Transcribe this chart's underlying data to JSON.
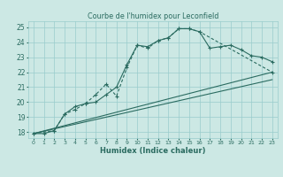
{
  "title": "Courbe de l'humidex pour Leconfield",
  "xlabel": "Humidex (Indice chaleur)",
  "x_ticks": [
    0,
    1,
    2,
    3,
    4,
    5,
    6,
    7,
    8,
    9,
    10,
    11,
    12,
    13,
    14,
    15,
    16,
    17,
    18,
    19,
    20,
    21,
    22,
    23
  ],
  "ylim": [
    17.6,
    25.4
  ],
  "xlim": [
    -0.5,
    23.5
  ],
  "yticks": [
    18,
    19,
    20,
    21,
    22,
    23,
    24,
    25
  ],
  "bg_color": "#cce8e4",
  "line_color": "#2a6b60",
  "grid_color": "#99cccc",
  "line1_x": [
    0,
    1,
    2,
    3,
    4,
    5,
    6,
    7,
    8,
    9,
    10,
    11,
    12,
    13,
    14,
    15,
    16,
    17,
    18,
    19,
    20,
    21,
    22,
    23
  ],
  "line1_y": [
    17.9,
    17.9,
    18.1,
    19.2,
    19.7,
    19.9,
    20.0,
    20.5,
    21.0,
    22.5,
    23.8,
    23.7,
    24.1,
    24.3,
    24.9,
    24.9,
    24.7,
    23.6,
    23.7,
    23.8,
    23.5,
    23.1,
    23.0,
    22.7
  ],
  "line2_x": [
    0,
    2,
    3,
    4,
    5,
    6,
    7,
    8,
    9,
    10,
    11,
    12,
    13,
    14,
    15,
    16,
    23
  ],
  "line2_y": [
    17.9,
    18.1,
    19.2,
    19.5,
    19.9,
    20.5,
    21.2,
    20.4,
    22.3,
    23.8,
    23.6,
    24.1,
    24.3,
    24.9,
    24.9,
    24.7,
    22.0
  ],
  "line3_x": [
    0,
    23
  ],
  "line3_y": [
    17.9,
    22.0
  ],
  "line4_x": [
    0,
    23
  ],
  "line4_y": [
    17.9,
    21.5
  ]
}
